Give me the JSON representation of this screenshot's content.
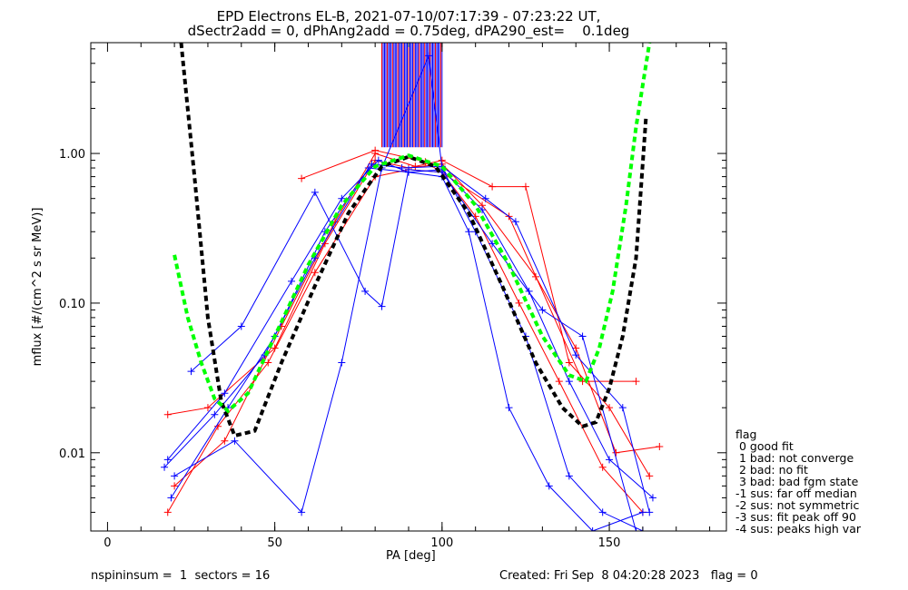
{
  "title_line1": "EPD Electrons EL-B, 2021-07-10/07:17:39 - 07:23:22 UT,",
  "title_line2": "dSectr2add = 0, dPhAng2add = 0.75deg, dPA290_est=    0.1deg",
  "footer_left": "nspininsum =  1  sectors = 16",
  "footer_right": "Created: Fri Sep  8 04:20:28 2023   flag = 0",
  "legend": {
    "title": "flag",
    "items": [
      " 0 good fit",
      " 1 bad: not converge",
      " 2 bad: no fit",
      " 3 bad: bad fgm state",
      "-1 sus: far off median",
      "-2 sus: not symmetric",
      "-3 sus: fit peak off 90",
      "-4 sus: peaks high var"
    ]
  },
  "chart_data": {
    "type": "line",
    "xlabel": "PA [deg]",
    "ylabel": "mflux [#/(cm^2 s sr MeV)]",
    "xlim": [
      -5,
      185
    ],
    "ylim": [
      0.003,
      5.5
    ],
    "ylog": true,
    "xticks": [
      0,
      50,
      100,
      150
    ],
    "xtick_labels": [
      "0",
      "50",
      "100",
      "150"
    ],
    "yticks": [
      0.01,
      0.1,
      1.0
    ],
    "ytick_labels": [
      "0.01",
      "0.10",
      "1.00"
    ],
    "colors": {
      "red_series": "#ff0000",
      "blue_series": "#0000ff",
      "fit_black": "#000000",
      "fit_green": "#00ff00"
    },
    "series": [
      {
        "color": "#ff0000",
        "x": [
          18,
          30,
          50,
          65,
          80,
          90,
          100,
          112,
          128,
          140,
          152,
          165
        ],
        "y": [
          0.018,
          0.02,
          0.05,
          0.25,
          0.9,
          0.8,
          0.85,
          0.45,
          0.15,
          0.05,
          0.01,
          0.011
        ]
      },
      {
        "color": "#ff0000",
        "x": [
          20,
          35,
          52,
          68,
          80,
          92,
          100,
          115,
          125,
          138,
          150,
          162
        ],
        "y": [
          0.006,
          0.012,
          0.07,
          0.35,
          1.0,
          0.82,
          0.9,
          0.6,
          0.6,
          0.04,
          0.02,
          0.007
        ]
      },
      {
        "color": "#ff0000",
        "x": [
          18,
          33,
          48,
          62,
          80,
          90,
          100,
          110,
          123,
          135,
          148,
          160
        ],
        "y": [
          0.004,
          0.015,
          0.04,
          0.16,
          0.7,
          0.78,
          0.75,
          0.38,
          0.1,
          0.03,
          0.008,
          0.004
        ]
      },
      {
        "color": "#ff0000",
        "x": [
          58,
          80,
          95,
          120,
          142,
          158
        ],
        "y": [
          0.68,
          1.05,
          0.88,
          0.38,
          0.03,
          0.03
        ]
      },
      {
        "color": "#0000ff",
        "x": [
          17,
          32,
          47,
          62,
          78,
          90,
          100,
          112,
          126,
          138,
          150,
          163
        ],
        "y": [
          0.008,
          0.018,
          0.045,
          0.2,
          0.8,
          0.75,
          0.78,
          0.42,
          0.12,
          0.03,
          0.009,
          0.005
        ]
      },
      {
        "color": "#0000ff",
        "x": [
          19,
          36,
          50,
          65,
          79,
          88,
          100,
          113,
          122,
          140,
          154,
          162
        ],
        "y": [
          0.005,
          0.02,
          0.06,
          0.3,
          0.85,
          0.8,
          0.82,
          0.5,
          0.35,
          0.045,
          0.02,
          0.004
        ]
      },
      {
        "color": "#0000ff",
        "x": [
          20,
          38,
          58,
          70,
          82,
          96,
          100,
          110,
          125,
          138,
          148,
          160
        ],
        "y": [
          0.007,
          0.012,
          0.004,
          0.04,
          0.8,
          4.5,
          0.8,
          0.3,
          0.06,
          0.007,
          0.004,
          0.003
        ]
      },
      {
        "color": "#0000ff",
        "x": [
          18,
          35,
          55,
          70,
          81,
          90,
          100,
          108,
          120,
          132,
          145,
          160
        ],
        "y": [
          0.009,
          0.025,
          0.14,
          0.5,
          0.9,
          0.75,
          0.7,
          0.3,
          0.02,
          0.006,
          0.003,
          0.004
        ]
      },
      {
        "color": "#0000ff",
        "x": [
          25,
          40,
          62,
          77,
          82,
          90,
          100,
          115,
          130,
          142,
          158
        ],
        "y": [
          0.035,
          0.07,
          0.55,
          0.12,
          0.095,
          0.78,
          0.75,
          0.25,
          0.09,
          0.06,
          0.003
        ]
      }
    ],
    "fits": [
      {
        "color": "#000000",
        "style": "dashed",
        "x": [
          22,
          26,
          30,
          34,
          38,
          44,
          52,
          62,
          72,
          82,
          90,
          98,
          108,
          118,
          128,
          136,
          142,
          146,
          150,
          154,
          158,
          161
        ],
        "y": [
          5.5,
          0.7,
          0.08,
          0.022,
          0.013,
          0.014,
          0.04,
          0.13,
          0.4,
          0.82,
          0.95,
          0.82,
          0.4,
          0.13,
          0.04,
          0.02,
          0.015,
          0.016,
          0.027,
          0.06,
          0.2,
          1.8
        ]
      },
      {
        "color": "#00ff00",
        "style": "dashed",
        "x": [
          20,
          24,
          28,
          32,
          36,
          42,
          50,
          60,
          70,
          80,
          90,
          100,
          110,
          120,
          130,
          138,
          143,
          147,
          151,
          155,
          158,
          162
        ],
        "y": [
          0.21,
          0.08,
          0.04,
          0.023,
          0.019,
          0.025,
          0.06,
          0.18,
          0.45,
          0.82,
          0.97,
          0.82,
          0.45,
          0.18,
          0.06,
          0.033,
          0.03,
          0.05,
          0.12,
          0.45,
          1.5,
          5.5
        ]
      }
    ],
    "spikes": {
      "color_red": "#ff0000",
      "color_blue": "#0000ff",
      "x_start": 82,
      "x_end": 100,
      "y_from": 1.1,
      "y_to": 5.5
    }
  }
}
